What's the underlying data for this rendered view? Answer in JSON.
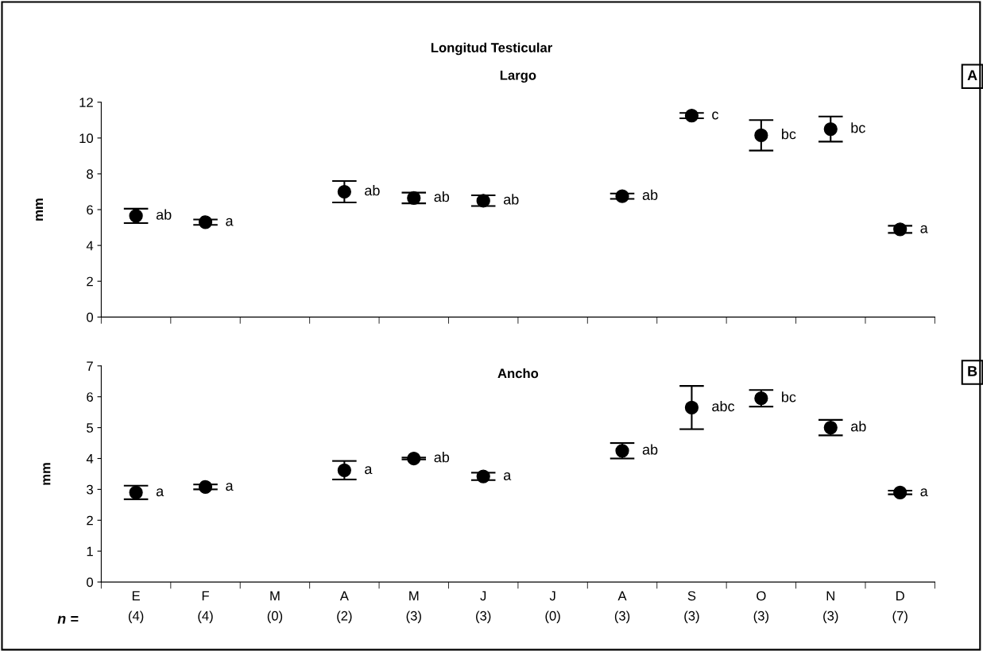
{
  "chart_data": [
    {
      "type": "scatter",
      "title": "Longitud Testicular",
      "subtitle": "Largo",
      "ylabel": "mm",
      "annotations": [
        "A"
      ],
      "categories": [
        null,
        null,
        null,
        null,
        null,
        null,
        null,
        null,
        null,
        null,
        null,
        null
      ],
      "series": [
        {
          "color": "#000000",
          "values": [
            5.65,
            5.3,
            null,
            7.0,
            6.65,
            6.5,
            null,
            6.75,
            11.25,
            10.15,
            10.5,
            4.9
          ],
          "errors": [
            0.4,
            0.15,
            null,
            0.6,
            0.3,
            0.3,
            null,
            0.15,
            0.15,
            0.85,
            0.7,
            0.2
          ],
          "value_labels": [
            "ab",
            "a",
            null,
            "ab",
            "ab",
            "ab",
            null,
            "ab",
            "c",
            "bc",
            "bc",
            "a"
          ]
        }
      ],
      "ylim": [
        0,
        12
      ],
      "yticks": [
        0,
        2,
        4,
        6,
        8,
        10,
        12
      ],
      "marker": "circle",
      "grid": false,
      "legend": false
    },
    {
      "type": "scatter",
      "title": "Ancho",
      "ylabel": "mm",
      "annotations": [
        "B",
        "n ="
      ],
      "categories": [
        "E\n(4)",
        "F\n(4)",
        "M\n(0)",
        "A\n(2)",
        "M\n(3)",
        "J\n(3)",
        "J\n(0)",
        "A\n(3)",
        "S\n(3)",
        "O\n(3)",
        "N\n(3)",
        "D\n(7)"
      ],
      "series": [
        {
          "color": "#000000",
          "values": [
            2.9,
            3.08,
            null,
            3.62,
            4.0,
            3.42,
            null,
            4.25,
            5.65,
            5.95,
            5.0,
            2.9
          ],
          "errors": [
            0.22,
            0.08,
            null,
            0.3,
            0.03,
            0.12,
            null,
            0.25,
            0.7,
            0.27,
            0.25,
            0.06
          ],
          "value_labels": [
            "a",
            "a",
            null,
            "a",
            "ab",
            "a",
            null,
            "ab",
            "abc",
            "bc",
            "ab",
            "a"
          ]
        }
      ],
      "ylim": [
        0,
        7
      ],
      "yticks": [
        0,
        1,
        2,
        3,
        4,
        5,
        6,
        7
      ],
      "marker": "circle",
      "grid": false,
      "legend": false
    }
  ]
}
